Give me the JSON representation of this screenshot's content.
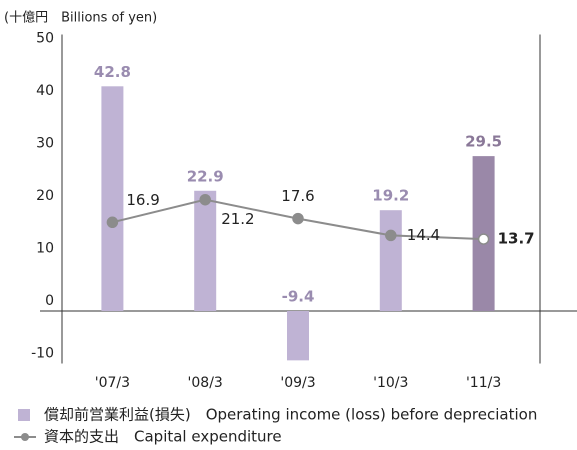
{
  "chart_data": {
    "type": "bar_line",
    "unit_label": "(十億円　Billions of yen)",
    "categories": [
      "'07/3",
      "'08/3",
      "'09/3",
      "'10/3",
      "'11/3"
    ],
    "series": [
      {
        "name": "償却前営業利益(損失)　Operating income (loss) before depreciation",
        "type": "bar",
        "color": "#bfb3d4",
        "colors": [
          "#bfb3d4",
          "#bfb3d4",
          "#bfb3d4",
          "#bfb3d4",
          "#9a88a8"
        ],
        "values": [
          42.8,
          22.9,
          -9.4,
          19.2,
          29.5
        ]
      },
      {
        "name": "資本的支出　Capital expenditure",
        "type": "line",
        "color": "#8c8c8c",
        "values": [
          16.9,
          21.2,
          17.6,
          14.4,
          13.7
        ]
      }
    ],
    "ylim": [
      -10,
      50
    ],
    "yticks": [
      -10,
      0,
      10,
      20,
      30,
      40,
      50
    ]
  }
}
